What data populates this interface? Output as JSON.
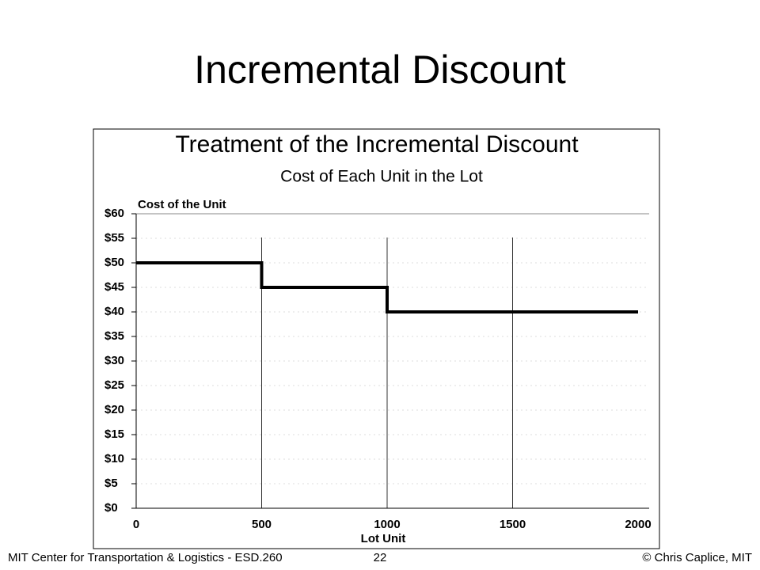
{
  "slide": {
    "title": "Incremental Discount",
    "footer_left": "MIT Center for Transportation & Logistics - ESD.260",
    "page": "22",
    "footer_right": "© Chris Caplice, MIT"
  },
  "chart_data": {
    "type": "line",
    "title": "Treatment of the Incremental Discount",
    "subtitle": "Cost of Each Unit in the Lot",
    "y_label": "Cost of the Unit",
    "x_label": "Lot Unit",
    "x": [
      0,
      500,
      500,
      1000,
      1000,
      2000
    ],
    "series": [
      {
        "name": "Cost of the Unit",
        "color": "#000000",
        "values": [
          50,
          50,
          45,
          45,
          40,
          40
        ]
      }
    ],
    "xlim": [
      0,
      2000
    ],
    "xticks": [
      0,
      500,
      1000,
      1500,
      2000
    ],
    "ylim": [
      0,
      60
    ],
    "yticks": [
      {
        "value": 0,
        "label": "$0"
      },
      {
        "value": 5,
        "label": "$5"
      },
      {
        "value": 10,
        "label": "$10"
      },
      {
        "value": 15,
        "label": "$15"
      },
      {
        "value": 20,
        "label": "$20"
      },
      {
        "value": 25,
        "label": "$25"
      },
      {
        "value": 30,
        "label": "$30"
      },
      {
        "value": 35,
        "label": "$35"
      },
      {
        "value": 40,
        "label": "$40"
      },
      {
        "value": 45,
        "label": "$45"
      },
      {
        "value": 50,
        "label": "$50"
      },
      {
        "value": 55,
        "label": "$55"
      },
      {
        "value": 60,
        "label": "$60"
      }
    ],
    "grid": true
  }
}
